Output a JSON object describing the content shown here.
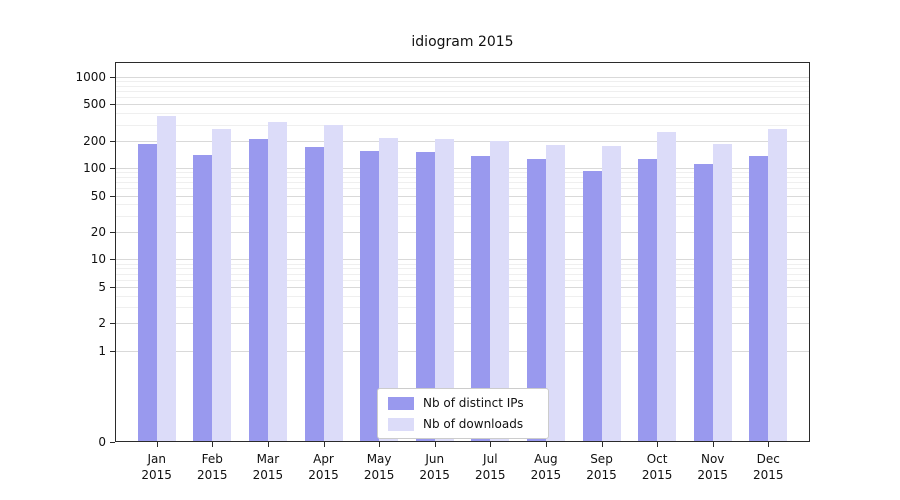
{
  "chart_data": {
    "type": "bar",
    "title": "idiogram 2015",
    "yscale": "symlog",
    "grid": true,
    "legend_position": "lower center",
    "categories": [
      "Jan",
      "Feb",
      "Mar",
      "Apr",
      "May",
      "Jun",
      "Jul",
      "Aug",
      "Sep",
      "Oct",
      "Nov",
      "Dec"
    ],
    "category_year": "2015",
    "series": [
      {
        "name": "Nb of distinct IPs",
        "key": "distinct-ips",
        "color": "#9999ee",
        "values": [
          185,
          140,
          210,
          170,
          155,
          150,
          135,
          125,
          92,
          125,
          112,
          135
        ]
      },
      {
        "name": "Nb of downloads",
        "key": "downloads",
        "color": "#dcdcf9",
        "values": [
          370,
          270,
          320,
          295,
          215,
          210,
          200,
          180,
          175,
          250,
          185,
          265
        ]
      }
    ],
    "yticks": [
      0,
      1,
      2,
      5,
      10,
      20,
      50,
      100,
      200,
      500,
      1000
    ],
    "ylim": [
      0,
      1450
    ]
  },
  "colors": {
    "grid_major": "#d9d9d9",
    "grid_minor": "#efefef",
    "spine": "#2b2b2b",
    "text": "#111111",
    "background": "#ffffff",
    "legend_border": "#cccccc"
  }
}
